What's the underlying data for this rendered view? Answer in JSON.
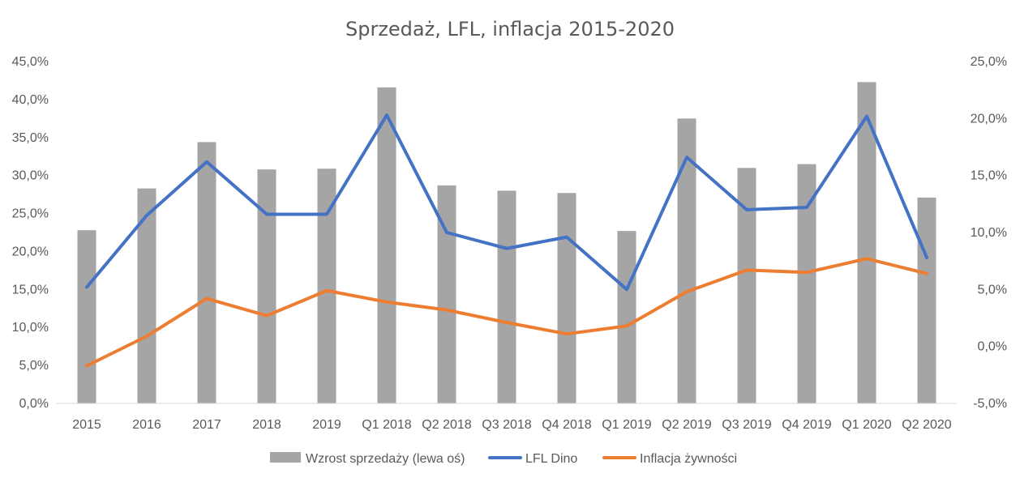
{
  "chart_data": {
    "type": "bar+line",
    "title": "Sprzedaż, LFL, inflacja 2015-2020",
    "categories": [
      "2015",
      "2016",
      "2017",
      "2018",
      "2019",
      "Q1 2018",
      "Q2 2018",
      "Q3 2018",
      "Q4 2018",
      "Q1 2019",
      "Q2 2019",
      "Q3 2019",
      "Q4 2019",
      "Q1 2020",
      "Q2 2020"
    ],
    "left_axis": {
      "ylim": [
        0,
        45
      ],
      "ticks": [
        "0,0%",
        "5,0%",
        "10,0%",
        "15,0%",
        "20,0%",
        "25,0%",
        "30,0%",
        "35,0%",
        "40,0%",
        "45,0%"
      ]
    },
    "right_axis": {
      "ylim": [
        -5,
        25
      ],
      "ticks": [
        "-5,0%",
        "0,0%",
        "5,0%",
        "10,0%",
        "15,0%",
        "20,0%",
        "25,0%"
      ]
    },
    "series": [
      {
        "name": "Wzrost sprzedaży (lewa oś)",
        "type": "bar",
        "axis": "left",
        "color": "#a5a5a5",
        "values": [
          22.8,
          28.3,
          34.4,
          30.8,
          30.9,
          41.6,
          28.7,
          28.0,
          27.7,
          22.7,
          37.5,
          31.0,
          31.5,
          42.3,
          27.1
        ]
      },
      {
        "name": "LFL Dino",
        "type": "line",
        "axis": "right",
        "color": "#4472c4",
        "values": [
          5.2,
          11.5,
          16.2,
          11.6,
          11.6,
          20.3,
          10.0,
          8.6,
          9.6,
          5.0,
          16.6,
          12.0,
          12.2,
          20.2,
          7.8
        ]
      },
      {
        "name": "Inflacja żywności",
        "type": "line",
        "axis": "right",
        "color": "#ed7d31",
        "values": [
          -1.7,
          0.9,
          4.2,
          2.7,
          4.9,
          3.9,
          3.2,
          2.1,
          1.1,
          1.8,
          4.8,
          6.7,
          6.5,
          7.7,
          6.4
        ]
      }
    ],
    "legend_position": "bottom",
    "grid": false
  }
}
